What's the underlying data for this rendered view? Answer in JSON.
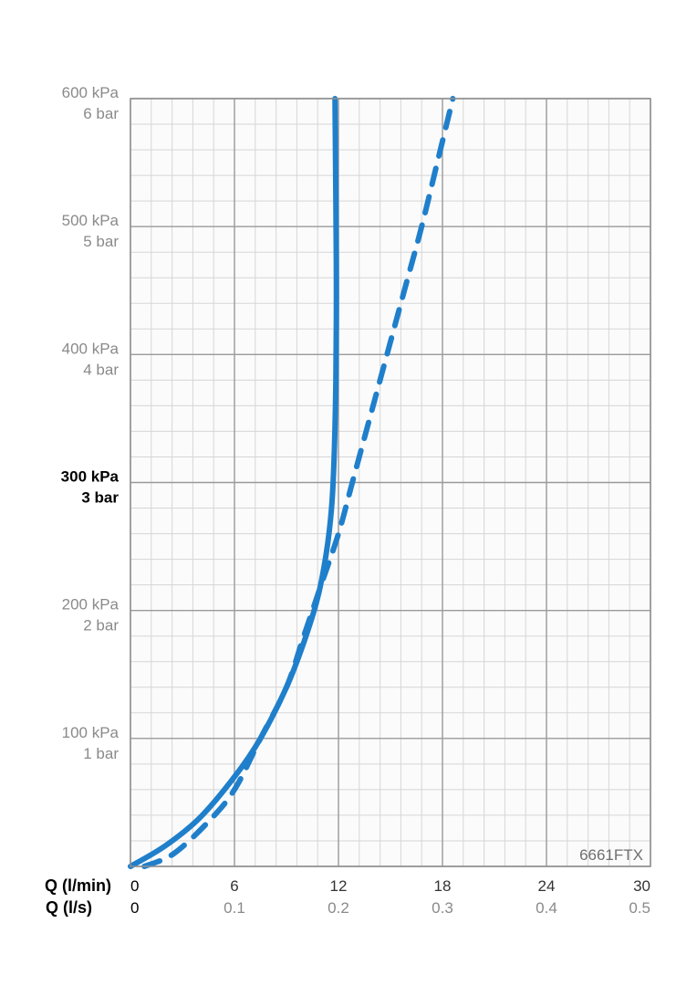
{
  "model_label": "6661FTX",
  "colors": {
    "curve": "#1f7fcb",
    "major_grid": "#9a9a9a",
    "minor_grid": "#d6d6d6",
    "plot_bg": "#fbfbfb"
  },
  "chart_data": {
    "type": "line",
    "title": "",
    "model": "6661FTX",
    "grid": true,
    "legend": "none",
    "x_axis": {
      "label_primary": "Q (l/min)",
      "label_secondary": "Q (l/s)",
      "range": [
        0,
        30
      ],
      "ticks_lmin": [
        "0",
        "6",
        "12",
        "18",
        "24",
        "30"
      ],
      "ticks_ls": [
        "0",
        "0.1",
        "0.2",
        "0.3",
        "0.4",
        "0.5"
      ],
      "major_step": 6,
      "minor_step": 1.2
    },
    "y_axis": {
      "unit": "kPa",
      "range": [
        0,
        600
      ],
      "ticks_kpa": [
        {
          "value": 100,
          "label": "100 kPa",
          "sub": "1 bar",
          "emphasis": false
        },
        {
          "value": 200,
          "label": "200 kPa",
          "sub": "2 bar",
          "emphasis": false
        },
        {
          "value": 300,
          "label": "300 kPa",
          "sub": "3 bar",
          "emphasis": true
        },
        {
          "value": 400,
          "label": "400 kPa",
          "sub": "4 bar",
          "emphasis": false
        },
        {
          "value": 500,
          "label": "500 kPa",
          "sub": "5 bar",
          "emphasis": false
        },
        {
          "value": 600,
          "label": "600 kPa",
          "sub": "6 bar",
          "emphasis": false
        }
      ],
      "major_step": 100,
      "minor_step": 20
    },
    "series": [
      {
        "style": "solid",
        "points": [
          [
            0,
            0
          ],
          [
            2,
            16
          ],
          [
            4,
            38
          ],
          [
            6,
            70
          ],
          [
            7.5,
            100
          ],
          [
            9,
            140
          ],
          [
            10,
            175
          ],
          [
            10.8,
            210
          ],
          [
            11.3,
            245
          ],
          [
            11.6,
            280
          ],
          [
            11.75,
            320
          ],
          [
            11.85,
            380
          ],
          [
            11.88,
            450
          ],
          [
            11.85,
            520
          ],
          [
            11.8,
            600
          ]
        ]
      },
      {
        "style": "dashed",
        "points": [
          [
            0.8,
            0
          ],
          [
            2.5,
            10
          ],
          [
            4.5,
            35
          ],
          [
            6,
            60
          ],
          [
            7.5,
            100
          ],
          [
            9,
            140
          ],
          [
            10,
            180
          ],
          [
            11,
            220
          ],
          [
            12,
            260
          ],
          [
            12.8,
            300
          ],
          [
            13.8,
            350
          ],
          [
            14.8,
            400
          ],
          [
            15.8,
            450
          ],
          [
            16.8,
            500
          ],
          [
            17.7,
            550
          ],
          [
            18.6,
            600
          ]
        ]
      }
    ]
  }
}
